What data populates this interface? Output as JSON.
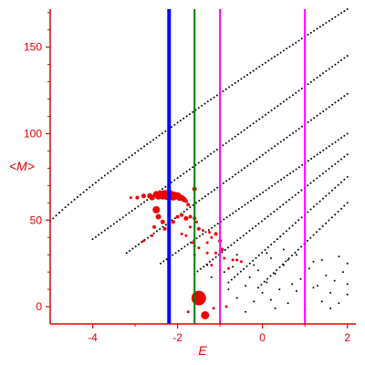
{
  "chart_data": {
    "type": "scatter",
    "title": "",
    "xlabel": "E",
    "ylabel": "<M>",
    "xlim": [
      -5.0,
      2.2
    ],
    "ylim": [
      -10,
      172
    ],
    "grid": false,
    "legend": "none",
    "x_ticks": [
      -4,
      -2,
      0,
      2
    ],
    "y_ticks": [
      0,
      50,
      100,
      150
    ],
    "x_tick_labels": [
      "-4",
      "-2",
      "0",
      "2"
    ],
    "y_tick_labels": [
      "0",
      "50",
      "100",
      "150"
    ],
    "axis_color": "#e00000",
    "series": [
      {
        "role": "black-bands",
        "color": "#000000",
        "bands": [
          {
            "x_start": -5.0,
            "x_end": 2.0,
            "y_start": 49,
            "y_end": 172,
            "curve": 0.9
          },
          {
            "x_start": -4.0,
            "x_end": 2.0,
            "y_start": 39,
            "y_end": 145,
            "curve": 1.0
          },
          {
            "x_start": -3.2,
            "x_end": 2.0,
            "y_start": 31,
            "y_end": 123,
            "curve": 1.0
          },
          {
            "x_start": -2.4,
            "x_end": 2.0,
            "y_start": 25,
            "y_end": 100,
            "curve": 1.0
          },
          {
            "x_start": -1.6,
            "x_end": 2.0,
            "y_start": 19,
            "y_end": 88,
            "curve": 1.0
          },
          {
            "x_start": -0.8,
            "x_end": 2.0,
            "y_start": 14,
            "y_end": 75,
            "curve": 1.0
          },
          {
            "x_start": -0.1,
            "x_end": 2.0,
            "y_start": 11,
            "y_end": 60,
            "curve": 1.0
          }
        ]
      },
      {
        "role": "black-cluster",
        "color": "#000000",
        "points": [
          [
            -0.9,
            20
          ],
          [
            -0.7,
            23
          ],
          [
            -0.5,
            26
          ],
          [
            -0.3,
            17
          ],
          [
            -0.1,
            21
          ],
          [
            0.1,
            14
          ],
          [
            0.3,
            19
          ],
          [
            0.5,
            24
          ],
          [
            0.7,
            13
          ],
          [
            0.9,
            16
          ],
          [
            1.1,
            22
          ],
          [
            1.3,
            12
          ],
          [
            1.5,
            18
          ],
          [
            1.7,
            15
          ],
          [
            1.9,
            20
          ],
          [
            2.0,
            13
          ],
          [
            -0.8,
            10
          ],
          [
            -0.4,
            12
          ],
          [
            0.0,
            8
          ],
          [
            0.4,
            10
          ],
          [
            0.8,
            9
          ],
          [
            1.2,
            11
          ],
          [
            1.6,
            8
          ],
          [
            2.0,
            7
          ],
          [
            -0.6,
            5
          ],
          [
            -0.2,
            3
          ],
          [
            0.2,
            4
          ],
          [
            0.6,
            2
          ],
          [
            1.0,
            1
          ],
          [
            1.4,
            3
          ],
          [
            1.8,
            2
          ],
          [
            -1.2,
            17
          ],
          [
            -1.0,
            21
          ],
          [
            -1.3,
            24
          ],
          [
            -0.6,
            30
          ],
          [
            0.2,
            28
          ],
          [
            0.8,
            30
          ],
          [
            1.4,
            27
          ],
          [
            2.0,
            25
          ],
          [
            -0.2,
            24
          ],
          [
            0.6,
            27
          ],
          [
            1.2,
            26
          ],
          [
            1.8,
            29
          ],
          [
            0.1,
            31
          ],
          [
            0.5,
            33
          ],
          [
            -0.4,
            -3
          ],
          [
            0.3,
            -1
          ],
          [
            1.0,
            -2
          ],
          [
            1.6,
            -1
          ]
        ]
      },
      {
        "role": "red-arc",
        "color": "#ee0000",
        "points": [
          [
            -3.1,
            63,
            1.5
          ],
          [
            -2.95,
            63,
            2
          ],
          [
            -2.8,
            64,
            2.5
          ],
          [
            -2.65,
            64,
            3
          ],
          [
            -2.5,
            65,
            3.5
          ],
          [
            -2.4,
            65,
            4
          ],
          [
            -2.3,
            65,
            4.5
          ],
          [
            -2.2,
            65,
            5
          ],
          [
            -2.1,
            64,
            5
          ],
          [
            -2.0,
            64,
            4
          ],
          [
            -1.9,
            63,
            3
          ],
          [
            -2.6,
            63,
            3
          ],
          [
            -2.45,
            64,
            4
          ],
          [
            -2.35,
            64,
            4
          ],
          [
            -2.25,
            64,
            4.5
          ],
          [
            -2.15,
            64,
            4.5
          ],
          [
            -2.05,
            64,
            4
          ],
          [
            -1.95,
            63,
            3.5
          ],
          [
            -1.85,
            62,
            3
          ],
          [
            -1.8,
            61,
            2
          ],
          [
            -1.75,
            59,
            2
          ],
          [
            -1.6,
            68,
            2.5
          ]
        ]
      },
      {
        "role": "red-scatter",
        "color": "#ee0000",
        "points": [
          [
            -2.5,
            56,
            4
          ],
          [
            -2.45,
            52,
            3
          ],
          [
            -2.35,
            49,
            2.5
          ],
          [
            -2.55,
            46,
            2
          ],
          [
            -2.3,
            45,
            2
          ],
          [
            -2.1,
            49,
            2
          ],
          [
            -2.0,
            52,
            2
          ],
          [
            -1.9,
            53,
            2
          ],
          [
            -1.8,
            51,
            2.5
          ],
          [
            -1.7,
            52,
            2
          ],
          [
            -1.6,
            51,
            2
          ],
          [
            -1.55,
            49,
            1.5
          ],
          [
            -1.7,
            46,
            1.5
          ],
          [
            -1.5,
            45,
            2
          ],
          [
            -1.4,
            44,
            1.5
          ],
          [
            -1.25,
            43,
            1.5
          ],
          [
            -1.1,
            42,
            2
          ],
          [
            -1.9,
            42,
            1.5
          ],
          [
            -1.8,
            41,
            1.5
          ],
          [
            -1.2,
            40,
            1.5
          ],
          [
            -1.0,
            38,
            2
          ],
          [
            -1.3,
            37,
            1.5
          ],
          [
            -0.95,
            33,
            2
          ],
          [
            -0.9,
            28,
            1.5
          ],
          [
            -0.6,
            27,
            1.5
          ],
          [
            -2.6,
            41,
            1.5
          ],
          [
            -2.8,
            38,
            1.5
          ],
          [
            -2.2,
            38,
            1.5
          ],
          [
            -1.65,
            37,
            1.5
          ],
          [
            -1.6,
            35,
            1.5
          ],
          [
            -1.5,
            34,
            1.5
          ],
          [
            -1.3,
            31,
            1.5
          ],
          [
            -1.1,
            31,
            1.5
          ],
          [
            -0.7,
            27,
            1.5
          ],
          [
            -0.5,
            26,
            1.5
          ],
          [
            -0.8,
            22,
            1.5
          ],
          [
            -1.2,
            24,
            1.5
          ],
          [
            -1.6,
            30,
            1.5
          ],
          [
            -1.5,
            5,
            8
          ],
          [
            -1.35,
            -5,
            4.5
          ],
          [
            -1.15,
            -1,
            1.5
          ],
          [
            -1.75,
            -3,
            1.5
          ],
          [
            -0.85,
            0,
            1.5
          ]
        ]
      }
    ],
    "vertical_lines": [
      {
        "x": -2.2,
        "color": "#0000ff",
        "width": 4
      },
      {
        "x": -1.6,
        "color": "#008000",
        "width": 2
      },
      {
        "x": -1.0,
        "color": "#ff00ff",
        "width": 2
      },
      {
        "x": 1.0,
        "color": "#ff00ff",
        "width": 2
      }
    ]
  }
}
